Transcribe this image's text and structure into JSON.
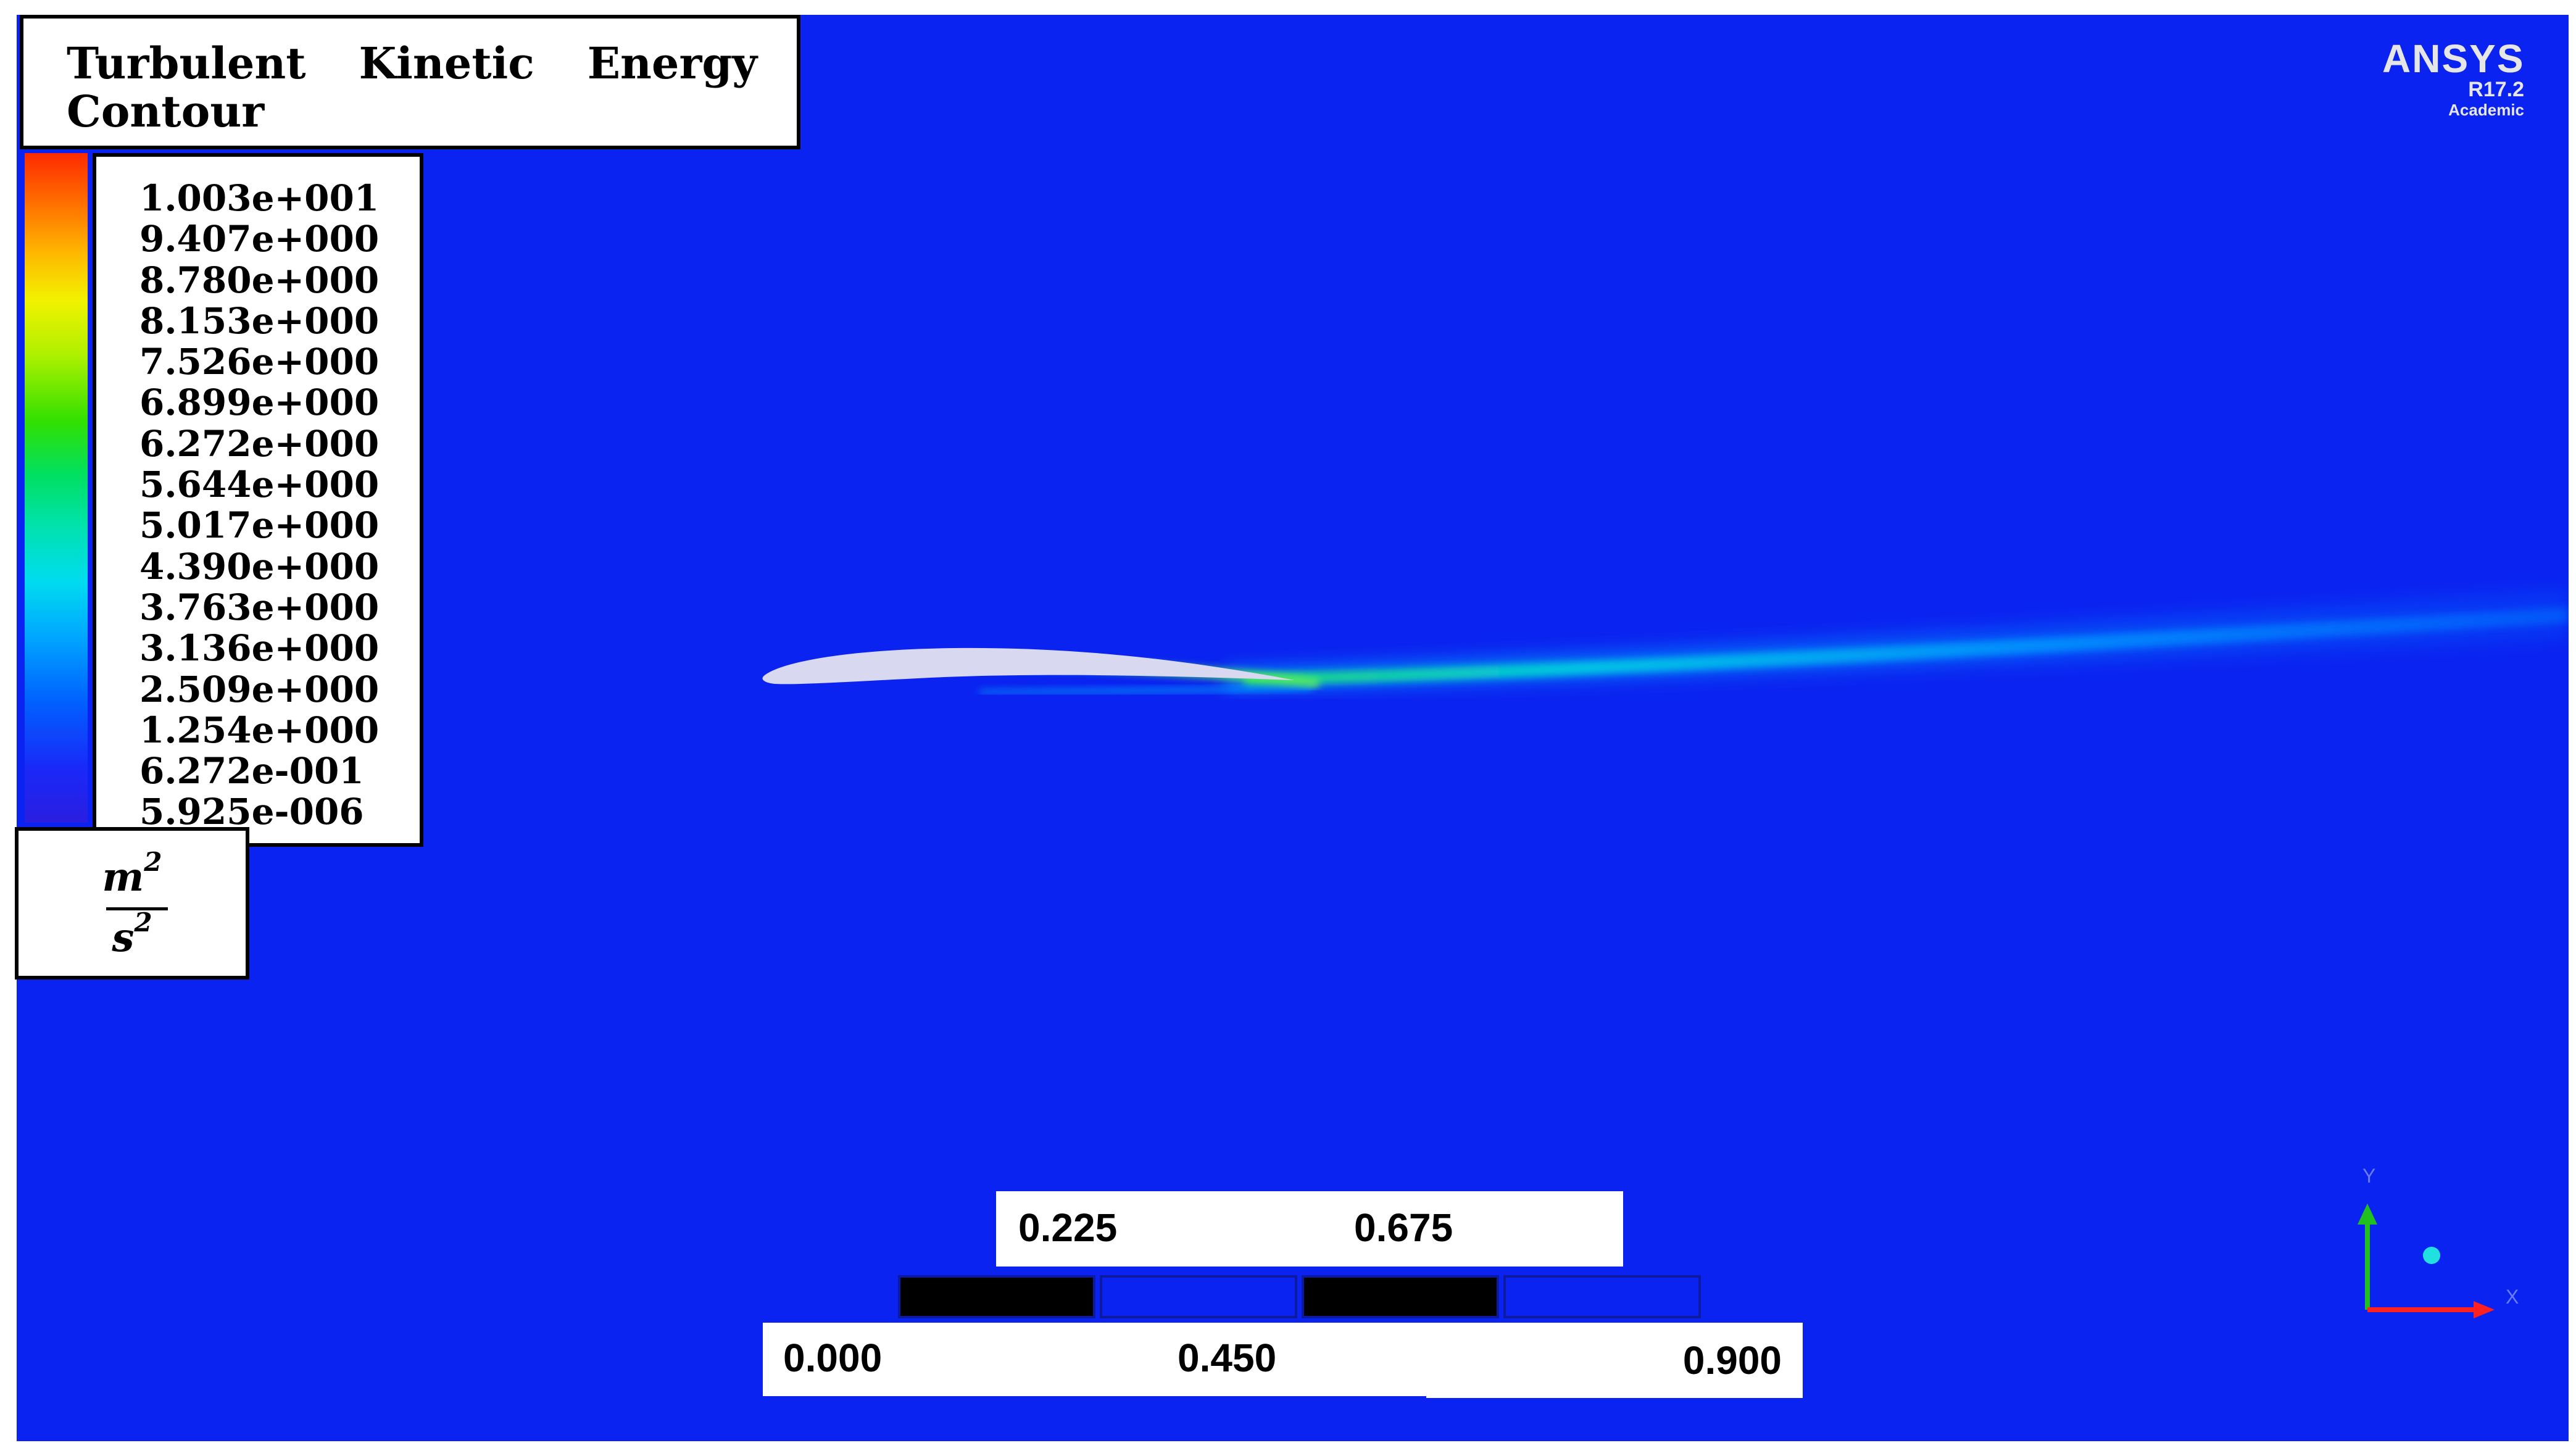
{
  "title": {
    "line1": [
      "Turbulent",
      "Kinetic",
      "Energy"
    ],
    "line2": "Contour"
  },
  "legend": {
    "colormap": "rainbow",
    "labels": [
      "1.003e+001",
      "9.407e+000",
      "8.780e+000",
      "8.153e+000",
      "7.526e+000",
      "6.899e+000",
      "6.272e+000",
      "5.644e+000",
      "5.017e+000",
      "4.390e+000",
      "3.763e+000",
      "3.136e+000",
      "2.509e+000",
      "1.254e+000",
      "6.272e-001",
      "5.925e-006"
    ],
    "unit": {
      "numerator": "m",
      "numerator_exp": "2",
      "denominator": "s",
      "denominator_exp": "2"
    }
  },
  "watermark": {
    "brand": "ANSYS",
    "version": "R17.2",
    "edition": "Academic"
  },
  "scale_bar": {
    "top_labels": [
      "0.225",
      "0.675"
    ],
    "bottom_labels": [
      "0.000",
      "0.450",
      "0.900"
    ]
  },
  "axes": {
    "y": "Y",
    "x": "X"
  },
  "colors": {
    "background": "#0a23f0",
    "airfoil": "#d8d8f0",
    "wake": "#00d8f0",
    "wake_core": "#40e060",
    "x_axis": "#ff2020",
    "y_axis": "#20c020"
  }
}
